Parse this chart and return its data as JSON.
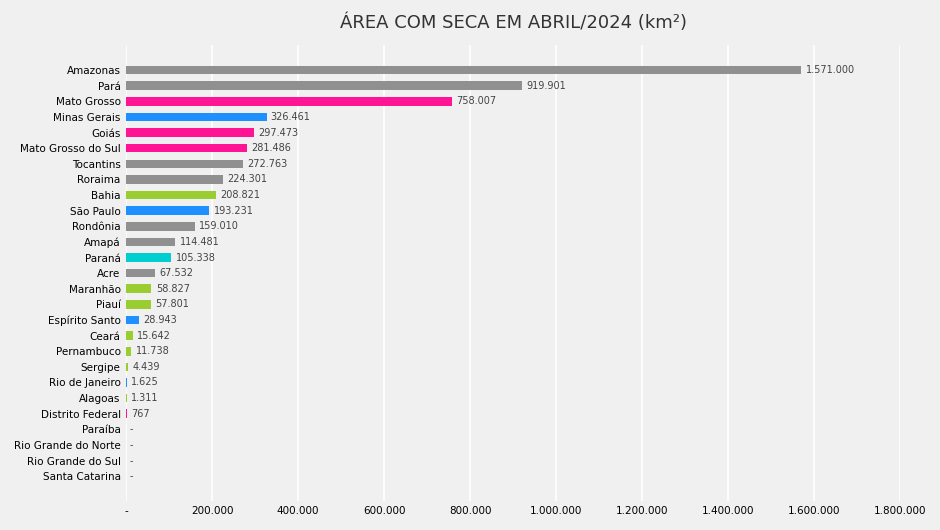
{
  "title": "ÁREA COM SECA EM ABRIL/2024 (km²)",
  "states": [
    "Amazonas",
    "Pará",
    "Mato Grosso",
    "Minas Gerais",
    "Goiás",
    "Mato Grosso do Sul",
    "Tocantins",
    "Roraima",
    "Bahia",
    "São Paulo",
    "Rondônia",
    "Amapá",
    "Paraná",
    "Acre",
    "Maranhão",
    "Piauí",
    "Espírito Santo",
    "Ceará",
    "Pernambuco",
    "Sergipe",
    "Rio de Janeiro",
    "Alagoas",
    "Distrito Federal",
    "Paraíba",
    "Rio Grande do Norte",
    "Rio Grande do Sul",
    "Santa Catarina"
  ],
  "values": [
    1571000,
    919901,
    758007,
    326461,
    297473,
    281486,
    272763,
    224301,
    208821,
    193231,
    159010,
    114481,
    105338,
    67532,
    58827,
    57801,
    28943,
    15642,
    11738,
    4439,
    1625,
    1311,
    767,
    0,
    0,
    0,
    0
  ],
  "labels": [
    "1.571.000",
    "919.901",
    "758.007",
    "326.461",
    "297.473",
    "281.486",
    "272.763",
    "224.301",
    "208.821",
    "193.231",
    "159.010",
    "114.481",
    "105.338",
    "67.532",
    "58.827",
    "57.801",
    "28.943",
    "15.642",
    "11.738",
    "4.439",
    "1.625",
    "1.311",
    "767",
    "-",
    "-",
    "-",
    "-"
  ],
  "colors": [
    "#909090",
    "#909090",
    "#FF1493",
    "#1E90FF",
    "#FF1493",
    "#FF1493",
    "#909090",
    "#909090",
    "#9ACD32",
    "#1E90FF",
    "#909090",
    "#909090",
    "#00CED1",
    "#909090",
    "#9ACD32",
    "#9ACD32",
    "#1E90FF",
    "#9ACD32",
    "#9ACD32",
    "#9ACD32",
    "#1E90FF",
    "#9ACD32",
    "#FF1493",
    "#9ACD32",
    "#9ACD32",
    "#00CED1",
    "#00CED1"
  ],
  "xlim": [
    0,
    1800000
  ],
  "xticks": [
    0,
    200000,
    400000,
    600000,
    800000,
    1000000,
    1200000,
    1400000,
    1600000,
    1800000
  ],
  "xtick_labels": [
    "-",
    "200.000",
    "400.000",
    "600.000",
    "800.000",
    "1.000.000",
    "1.200.000",
    "1.400.000",
    "1.600.000",
    "1.800.000"
  ],
  "bg_color": "#f0f0f0",
  "bar_height": 0.55,
  "title_fontsize": 13
}
